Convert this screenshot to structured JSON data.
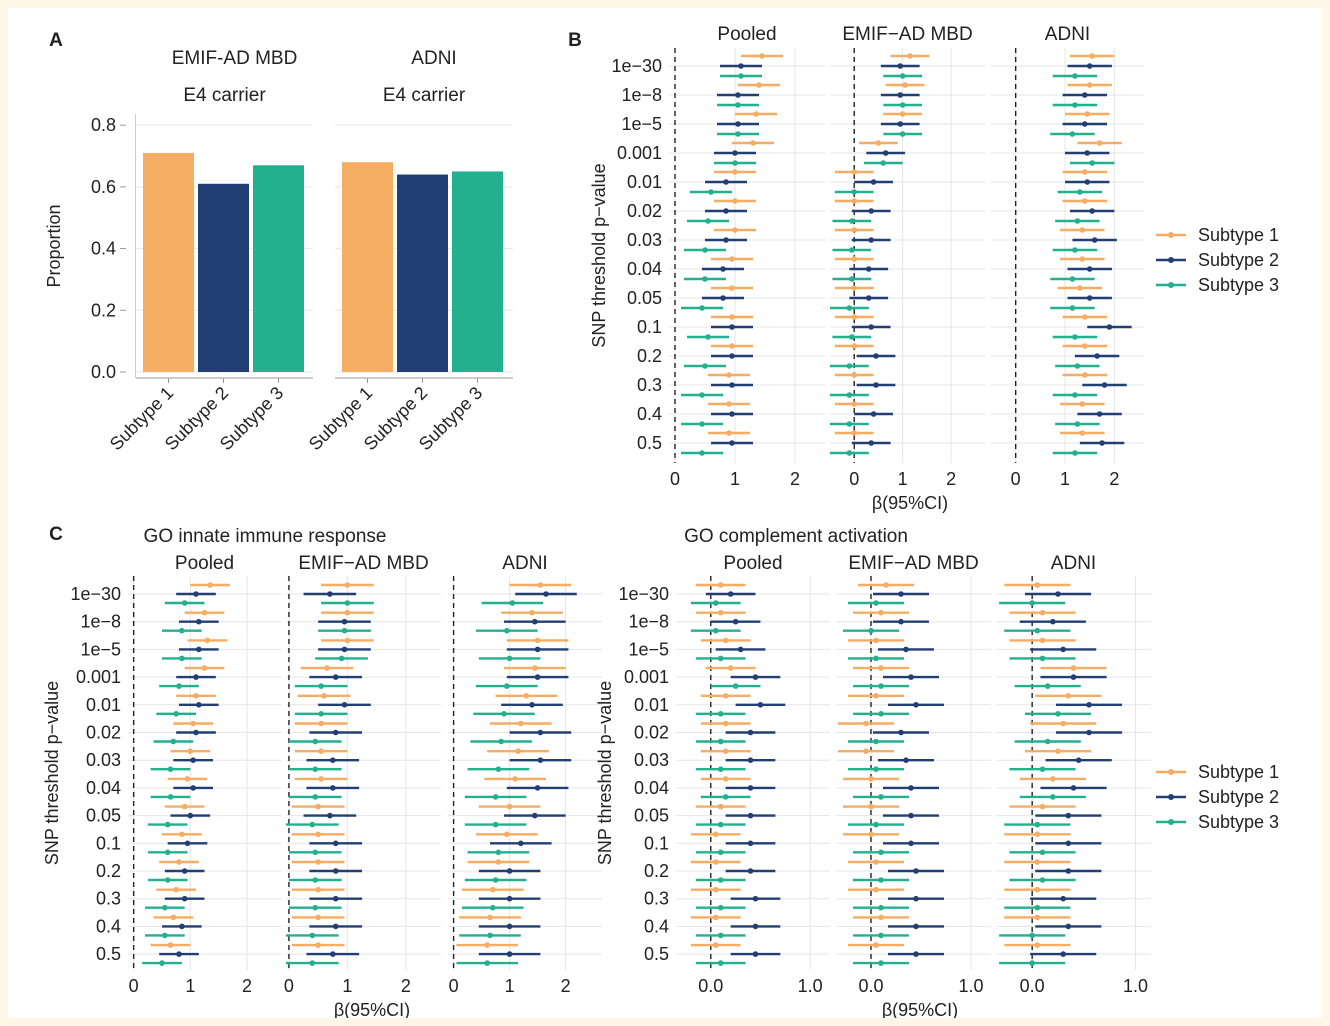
{
  "colors": {
    "s1": "#f5ac63",
    "s2": "#223f73",
    "s3": "#22b08f",
    "grid": "#e6e6e6",
    "axis": "#999999"
  },
  "panel_letters": [
    "A",
    "B",
    "C"
  ],
  "chart_data": [
    {
      "id": "A",
      "type": "bar",
      "ylabel": "Proportion",
      "ylim": [
        0,
        0.82
      ],
      "yticks": [
        "0.0",
        "0.2",
        "0.4",
        "0.6",
        "0.8"
      ],
      "ytick_values": [
        0,
        0.2,
        0.4,
        0.6,
        0.8
      ],
      "categories": [
        "Subtype 1",
        "Subtype 2",
        "Subtype 3"
      ],
      "facets": [
        {
          "title": "EMIF-AD MBD",
          "subtitle": "E4 carrier",
          "values": [
            0.71,
            0.61,
            0.67
          ]
        },
        {
          "title": "ADNI",
          "subtitle": "E4 carrier",
          "values": [
            0.68,
            0.64,
            0.65
          ]
        }
      ]
    },
    {
      "id": "B",
      "type": "scatter",
      "subtype": "forest",
      "ylabel": "SNP threshold p−value",
      "xlabel": "β(95%CI)",
      "categories": [
        "1e−30",
        "1e−8",
        "1e−5",
        "0.001",
        "0.01",
        "0.02",
        "0.03",
        "0.04",
        "0.05",
        "0.1",
        "0.2",
        "0.3",
        "0.4",
        "0.5"
      ],
      "legend": [
        "Subtype 1",
        "Subtype 2",
        "Subtype 3"
      ],
      "facets": [
        {
          "title": "Pooled",
          "xlim": [
            -0.1,
            2.5
          ],
          "xticks": [
            0,
            1,
            2
          ],
          "s1": [
            1.45,
            1.4,
            1.35,
            1.3,
            1.0,
            1.0,
            1.0,
            0.95,
            0.95,
            0.95,
            0.95,
            0.9,
            0.9,
            0.9
          ],
          "s2": [
            1.1,
            1.05,
            1.05,
            1.0,
            0.85,
            0.85,
            0.85,
            0.8,
            0.8,
            0.95,
            0.95,
            0.95,
            0.95,
            0.95
          ],
          "s3": [
            1.1,
            1.05,
            1.05,
            1.0,
            0.6,
            0.55,
            0.5,
            0.5,
            0.45,
            0.55,
            0.5,
            0.45,
            0.45,
            0.45
          ],
          "err": 0.35
        },
        {
          "title": "EMIF−AD MBD",
          "xlim": [
            -0.5,
            2.7
          ],
          "xticks": [
            0,
            1,
            2
          ],
          "s1": [
            1.15,
            1.05,
            1.0,
            0.5,
            0.0,
            0.0,
            0.0,
            0.0,
            0.0,
            0.0,
            0.0,
            0.0,
            0.0,
            0.0
          ],
          "s2": [
            0.95,
            0.95,
            0.95,
            0.65,
            0.4,
            0.35,
            0.35,
            0.3,
            0.3,
            0.35,
            0.45,
            0.45,
            0.4,
            0.35
          ],
          "s3": [
            1.0,
            1.0,
            1.0,
            0.6,
            0.0,
            -0.05,
            -0.05,
            -0.05,
            -0.1,
            -0.05,
            -0.1,
            -0.1,
            -0.1,
            -0.1
          ],
          "err": 0.4
        },
        {
          "title": "ADNI",
          "xlim": [
            -0.5,
            2.6
          ],
          "xticks": [
            0,
            1,
            2
          ],
          "s1": [
            1.55,
            1.5,
            1.45,
            1.7,
            1.4,
            1.4,
            1.35,
            1.35,
            1.3,
            1.4,
            1.4,
            1.4,
            1.35,
            1.35
          ],
          "s2": [
            1.5,
            1.4,
            1.4,
            1.45,
            1.45,
            1.55,
            1.6,
            1.5,
            1.5,
            1.9,
            1.65,
            1.8,
            1.7,
            1.75
          ],
          "s3": [
            1.2,
            1.2,
            1.15,
            1.55,
            1.3,
            1.25,
            1.2,
            1.15,
            1.15,
            1.2,
            1.25,
            1.2,
            1.25,
            1.2
          ],
          "err": 0.45
        }
      ]
    },
    {
      "id": "C1",
      "type": "scatter",
      "subtype": "forest",
      "group_title": "GO innate immune response",
      "ylabel": "SNP threshold p−value",
      "xlabel": "β(95%CI)",
      "categories": [
        "1e−30",
        "1e−8",
        "1e−5",
        "0.001",
        "0.01",
        "0.02",
        "0.03",
        "0.04",
        "0.05",
        "0.1",
        "0.2",
        "0.3",
        "0.4",
        "0.5"
      ],
      "facets": [
        {
          "title": "Pooled",
          "xlim": [
            -0.1,
            2.6
          ],
          "xticks": [
            0,
            1,
            2
          ],
          "s1": [
            1.35,
            1.25,
            1.3,
            1.25,
            1.1,
            1.05,
            1.0,
            0.95,
            0.9,
            0.85,
            0.8,
            0.75,
            0.7,
            0.65
          ],
          "s2": [
            1.1,
            1.15,
            1.15,
            1.1,
            1.15,
            1.1,
            1.05,
            1.05,
            1.0,
            0.95,
            0.9,
            0.9,
            0.85,
            0.8
          ],
          "s3": [
            0.9,
            0.85,
            0.85,
            0.8,
            0.75,
            0.7,
            0.65,
            0.65,
            0.6,
            0.6,
            0.6,
            0.55,
            0.55,
            0.5
          ],
          "err": 0.35
        },
        {
          "title": "EMIF−AD MBD",
          "xlim": [
            -0.05,
            2.6
          ],
          "xticks": [
            0,
            1,
            2
          ],
          "s1": [
            1.0,
            1.0,
            1.0,
            0.65,
            0.6,
            0.55,
            0.55,
            0.55,
            0.5,
            0.5,
            0.5,
            0.5,
            0.5,
            0.5
          ],
          "s2": [
            0.7,
            0.95,
            0.95,
            0.8,
            0.95,
            0.8,
            0.75,
            0.75,
            0.7,
            0.8,
            0.8,
            0.8,
            0.8,
            0.75
          ],
          "s3": [
            1.0,
            0.95,
            0.9,
            0.55,
            0.55,
            0.45,
            0.45,
            0.45,
            0.4,
            0.45,
            0.45,
            0.45,
            0.4,
            0.4
          ],
          "err": 0.45
        },
        {
          "title": "ADNI",
          "xlim": [
            -0.1,
            2.65
          ],
          "xticks": [
            0,
            1,
            2
          ],
          "s1": [
            1.55,
            1.4,
            1.5,
            1.45,
            1.3,
            1.2,
            1.15,
            1.1,
            1.0,
            0.95,
            0.8,
            0.7,
            0.65,
            0.6
          ],
          "s2": [
            1.65,
            1.45,
            1.5,
            1.5,
            1.4,
            1.55,
            1.55,
            1.5,
            1.45,
            1.2,
            1.0,
            1.0,
            1.0,
            1.0
          ],
          "s3": [
            1.05,
            0.95,
            1.0,
            0.95,
            0.9,
            0.85,
            0.8,
            0.75,
            0.75,
            0.8,
            0.75,
            0.7,
            0.65,
            0.6
          ],
          "err": 0.55
        }
      ]
    },
    {
      "id": "C2",
      "type": "scatter",
      "subtype": "forest",
      "group_title": "GO complement activation",
      "ylabel": "SNP threshold p−value",
      "xlabel": "β(95%CI)",
      "categories": [
        "1e−30",
        "1e−8",
        "1e−5",
        "0.001",
        "0.01",
        "0.02",
        "0.03",
        "0.04",
        "0.05",
        "0.1",
        "0.2",
        "0.3",
        "0.4",
        "0.5"
      ],
      "legend": [
        "Subtype 1",
        "Subtype 2",
        "Subtype 3"
      ],
      "facets": [
        {
          "title": "Pooled",
          "xlim": [
            -0.35,
            1.2
          ],
          "xticks": [
            "0.0",
            "1.0"
          ],
          "xtick_values": [
            0,
            1
          ],
          "s1": [
            0.1,
            0.1,
            0.15,
            0.2,
            0.15,
            0.15,
            0.15,
            0.15,
            0.1,
            0.05,
            0.05,
            0.05,
            0.05,
            0.05
          ],
          "s2": [
            0.2,
            0.25,
            0.3,
            0.45,
            0.5,
            0.4,
            0.4,
            0.4,
            0.4,
            0.4,
            0.4,
            0.45,
            0.45,
            0.45
          ],
          "s3": [
            0.05,
            0.05,
            0.1,
            0.25,
            0.1,
            0.1,
            0.1,
            0.15,
            0.1,
            0.1,
            0.1,
            0.1,
            0.1,
            0.1
          ],
          "err": 0.25
        },
        {
          "title": "EMIF−AD MBD",
          "xlim": [
            -0.35,
            1.2
          ],
          "xticks": [
            "0.0",
            "1.0"
          ],
          "xtick_values": [
            0,
            1
          ],
          "s1": [
            0.15,
            0.1,
            0.05,
            0.1,
            0.05,
            -0.05,
            -0.05,
            0.0,
            0.0,
            0.0,
            0.05,
            0.05,
            0.1,
            0.05
          ],
          "s2": [
            0.3,
            0.3,
            0.35,
            0.4,
            0.45,
            0.3,
            0.35,
            0.4,
            0.4,
            0.4,
            0.45,
            0.45,
            0.45,
            0.45
          ],
          "s3": [
            0.05,
            0.0,
            0.05,
            0.1,
            0.1,
            0.05,
            0.05,
            0.1,
            0.05,
            0.1,
            0.1,
            0.1,
            0.1,
            0.1
          ],
          "err": 0.28
        },
        {
          "title": "ADNI",
          "xlim": [
            -0.35,
            1.15
          ],
          "xticks": [
            "0.0",
            "1.0"
          ],
          "xtick_values": [
            0,
            1
          ],
          "s1": [
            0.05,
            0.1,
            0.1,
            0.4,
            0.35,
            0.3,
            0.25,
            0.2,
            0.1,
            0.05,
            0.05,
            0.05,
            0.05,
            0.05
          ],
          "s2": [
            0.25,
            0.2,
            0.3,
            0.4,
            0.55,
            0.55,
            0.45,
            0.4,
            0.35,
            0.35,
            0.35,
            0.3,
            0.35,
            0.3
          ],
          "s3": [
            0.0,
            0.05,
            0.1,
            0.15,
            0.25,
            0.15,
            0.1,
            0.2,
            0.05,
            0.1,
            0.1,
            0.05,
            0.0,
            0.0
          ],
          "err": 0.32
        }
      ]
    }
  ]
}
